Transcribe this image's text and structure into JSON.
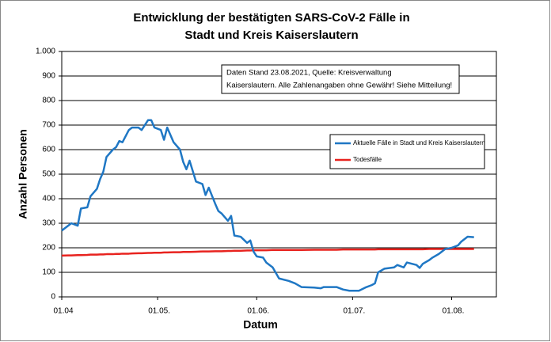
{
  "chart_data": {
    "type": "line",
    "title": [
      "Entwicklung der bestätigten SARS-CoV-2 Fälle in",
      "Stadt und Kreis Kaiserslautern"
    ],
    "xlabel": "Datum",
    "ylabel": "Anzahl Personen",
    "annotation": [
      "Daten Stand 23.08.2021, Quelle: Kreisverwaltung",
      "Kaiserslautern. Alle Zahlenangaben ohne Gewähr! Siehe Mitteilung!"
    ],
    "x": [
      "01.04.",
      "03.04.",
      "04.04.",
      "06.04.",
      "07.04.",
      "09.04.",
      "10.04.",
      "12.04.",
      "13.04.",
      "14.04.",
      "15.04.",
      "17.04.",
      "18.04.",
      "19.04.",
      "20.04.",
      "22.04.",
      "23.04.",
      "25.04.",
      "26.04.",
      "28.04.",
      "29.04.",
      "30.04.",
      "02.05.",
      "03.05.",
      "04.05.",
      "06.05.",
      "08.05.",
      "09.05.",
      "10.05.",
      "11.05.",
      "13.05.",
      "15.05.",
      "16.05.",
      "17.05.",
      "19.05.",
      "20.05.",
      "21.05.",
      "23.05.",
      "24.05.",
      "25.05.",
      "27.05.",
      "29.05.",
      "30.05.",
      "31.05.",
      "01.06.",
      "03.06.",
      "04.06.",
      "06.06.",
      "08.06.",
      "11.06.",
      "13.06.",
      "15.06.",
      "19.06.",
      "21.06.",
      "22.06.",
      "26.06.",
      "28.06.",
      "30.06.",
      "03.07.",
      "05.07.",
      "07.07.",
      "08.07.",
      "09.07.",
      "11.07.",
      "14.07.",
      "15.07.",
      "17.07.",
      "18.07.",
      "21.07.",
      "22.07.",
      "23.07.",
      "25.07.",
      "26.07.",
      "28.07.",
      "30.07.",
      "01.08.",
      "03.08.",
      "04.08.",
      "06.08.",
      "08.08."
    ],
    "series": [
      {
        "name": "Aktuelle Fälle in Stadt und Kreis Kaiserslautern",
        "color": "#1f77c4",
        "values": [
          270,
          290,
          300,
          290,
          360,
          365,
          410,
          440,
          480,
          510,
          570,
          600,
          610,
          635,
          630,
          680,
          690,
          690,
          680,
          720,
          720,
          690,
          680,
          640,
          690,
          630,
          600,
          550,
          520,
          555,
          470,
          460,
          415,
          445,
          380,
          350,
          340,
          310,
          330,
          250,
          245,
          220,
          230,
          185,
          165,
          160,
          140,
          120,
          75,
          65,
          55,
          40,
          38,
          35,
          40,
          40,
          30,
          25,
          25,
          38,
          48,
          55,
          100,
          115,
          120,
          130,
          120,
          140,
          130,
          118,
          135,
          150,
          160,
          175,
          195,
          200,
          210,
          225,
          245,
          243
        ]
      },
      {
        "name": "Todesfälle",
        "color": "#e8231f",
        "values": [
          168,
          169,
          169,
          170,
          170,
          171,
          172,
          172,
          173,
          173,
          174,
          174,
          175,
          175,
          176,
          176,
          177,
          178,
          178,
          179,
          179,
          180,
          180,
          181,
          181,
          182,
          182,
          183,
          183,
          183,
          184,
          185,
          185,
          185,
          186,
          186,
          186,
          187,
          187,
          188,
          188,
          189,
          189,
          190,
          190,
          190,
          190,
          191,
          191,
          191,
          191,
          191,
          192,
          192,
          192,
          192,
          193,
          193,
          193,
          193,
          193,
          193,
          194,
          194,
          194,
          194,
          194,
          194,
          194,
          194,
          194,
          195,
          195,
          195,
          195,
          195,
          195,
          195,
          195,
          195
        ]
      }
    ],
    "xlim": [
      "01.04.",
      "15.08."
    ],
    "xticks": [
      "01.04",
      "01.05.",
      "01.06.",
      "01.07.",
      "01.08."
    ],
    "ylim": [
      0,
      1000
    ],
    "yticks": [
      0,
      100,
      200,
      300,
      400,
      500,
      600,
      700,
      800,
      900,
      {
        "value": 1000,
        "label": "1.000"
      }
    ],
    "grid": true
  }
}
